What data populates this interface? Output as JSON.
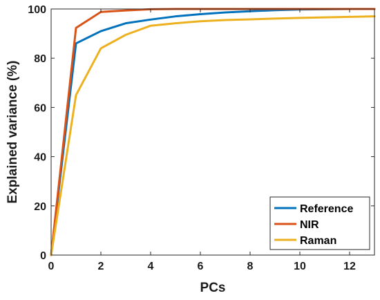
{
  "chart_data": {
    "type": "line",
    "xlabel": "PCs",
    "ylabel": "Explained variance (%)",
    "xlim": [
      0,
      13
    ],
    "ylim": [
      0,
      100
    ],
    "xticks": [
      0,
      2,
      4,
      6,
      8,
      10,
      12
    ],
    "yticks": [
      0,
      20,
      40,
      60,
      80,
      100
    ],
    "grid": false,
    "legend_position": "bottom-right",
    "series": [
      {
        "name": "Reference",
        "color": "#0072BD",
        "x": [
          0,
          1,
          2,
          3,
          4,
          5,
          6,
          7,
          8,
          9,
          10,
          11,
          12,
          13
        ],
        "y": [
          0,
          86,
          91,
          94.2,
          95.7,
          97,
          97.9,
          98.6,
          99.1,
          99.5,
          99.8,
          99.9,
          100,
          100
        ]
      },
      {
        "name": "NIR",
        "color": "#D95319",
        "x": [
          0,
          1,
          2,
          3,
          4,
          5,
          6,
          7,
          8,
          9,
          10,
          11,
          12,
          13
        ],
        "y": [
          0,
          92.3,
          98.8,
          99.4,
          99.9,
          100,
          100,
          100,
          100,
          100,
          100,
          100,
          100,
          100
        ]
      },
      {
        "name": "Raman",
        "color": "#EDB120",
        "x": [
          0,
          1,
          2,
          3,
          4,
          5,
          6,
          7,
          8,
          9,
          10,
          11,
          12,
          13
        ],
        "y": [
          0,
          65,
          84,
          89.5,
          93.2,
          94.2,
          95,
          95.5,
          95.8,
          96.1,
          96.4,
          96.6,
          96.8,
          97
        ]
      }
    ]
  }
}
